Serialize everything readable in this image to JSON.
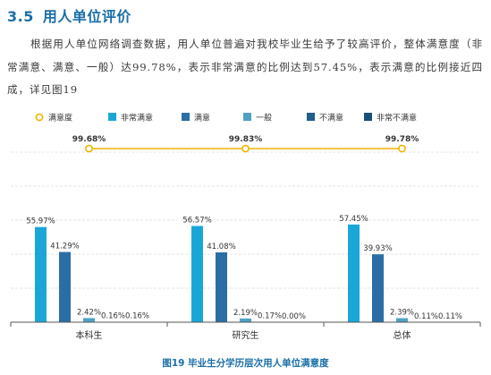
{
  "section": {
    "number": "3.5",
    "title": "用人单位评价"
  },
  "paragraph": "根据用人单位网络调查数据，用人单位普遍对我校毕业生给予了较高评价，整体满意度（非常满意、满意、一般）达99.78%，表示非常满意的比例达到57.45%，表示满意的比例接近四成，详见图19",
  "caption": "图19 毕业生分学历层次用人单位满意度",
  "colors": {
    "line": "#f0b400",
    "非常满意": "#1aa7d8",
    "满意": "#2b6ea5",
    "一般": "#4fa2c4",
    "不满意": "#1f5f8b",
    "非常不满意": "#1b4f7a",
    "heading": "#1a6fa8"
  },
  "chart_data": {
    "type": "bar",
    "categories": [
      "本科生",
      "研究生",
      "总体"
    ],
    "legend": [
      "满意度",
      "非常满意",
      "满意",
      "一般",
      "不满意",
      "非常不满意"
    ],
    "legend_placement": "top",
    "grid": true,
    "ylim": [
      0,
      100
    ],
    "series": [
      {
        "name": "非常满意",
        "values": [
          55.97,
          56.57,
          57.45
        ],
        "labels": [
          "55.97%",
          "56.57%",
          "57.45%"
        ]
      },
      {
        "name": "满意",
        "values": [
          41.29,
          41.08,
          39.93
        ],
        "labels": [
          "41.29%",
          "41.08%",
          "39.93%"
        ]
      },
      {
        "name": "一般",
        "values": [
          2.42,
          2.19,
          2.39
        ],
        "labels": [
          "2.42%",
          "2.19%",
          "2.39%"
        ]
      },
      {
        "name": "不满意",
        "values": [
          0.16,
          0.17,
          0.11
        ],
        "labels": [
          "0.16%",
          "0.17%",
          "0.11%"
        ]
      },
      {
        "name": "非常不满意",
        "values": [
          0.16,
          0.0,
          0.11
        ],
        "labels": [
          "0.16%",
          "0.00%",
          "0.11%"
        ]
      }
    ],
    "line": {
      "name": "满意度",
      "values": [
        99.68,
        99.83,
        99.78
      ],
      "labels": [
        "99.68%",
        "99.83%",
        "99.78%"
      ]
    }
  }
}
